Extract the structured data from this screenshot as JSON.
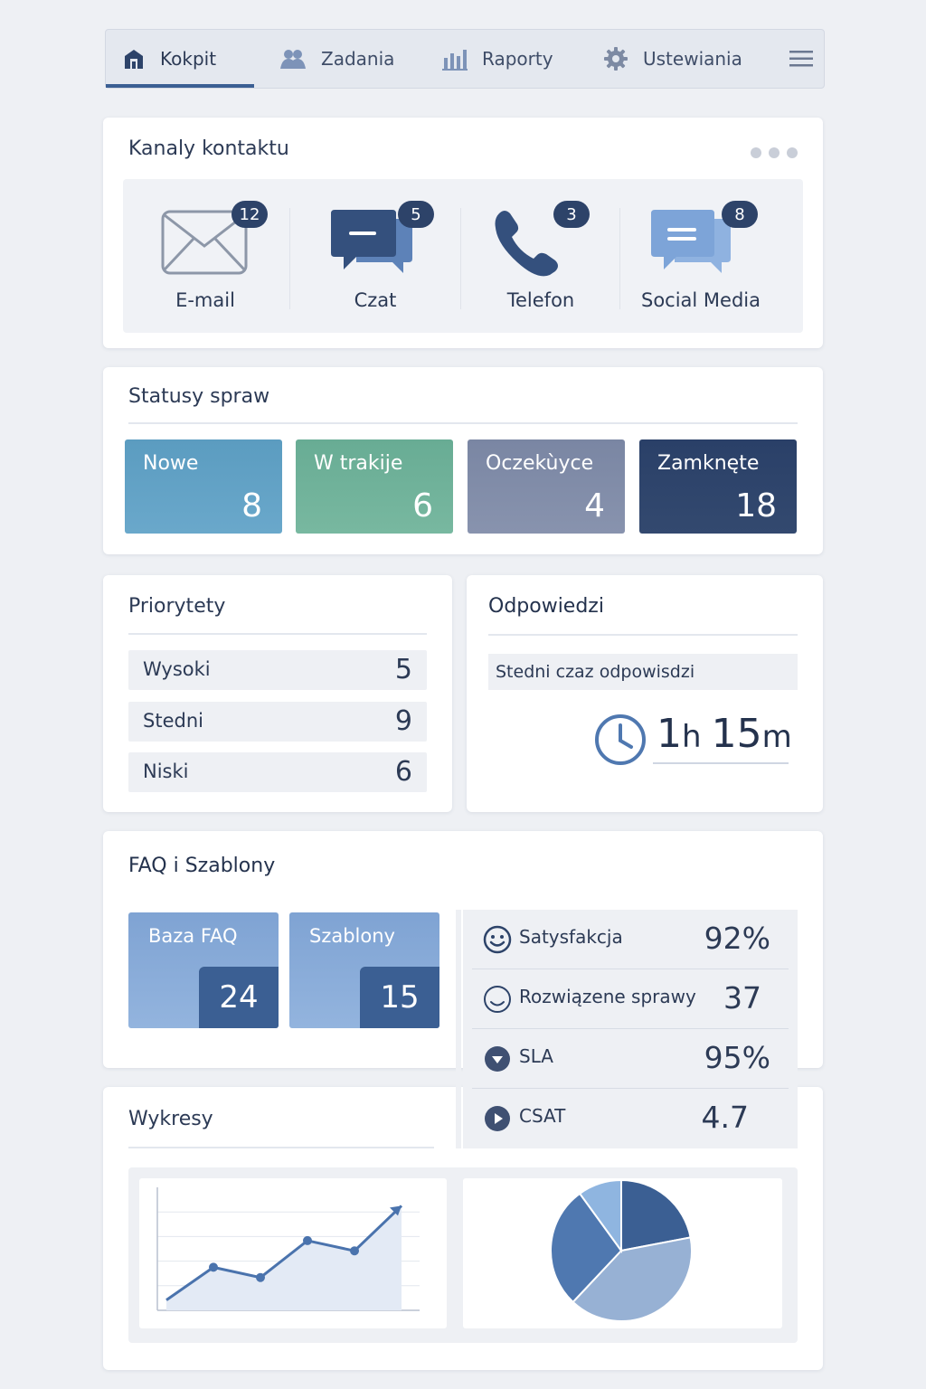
{
  "nav": {
    "items": [
      {
        "label": "Kokpit",
        "icon": "home-icon",
        "active": true
      },
      {
        "label": "Zadania",
        "icon": "users-icon",
        "active": false
      },
      {
        "label": "Raporty",
        "icon": "bar-chart-icon",
        "active": false
      },
      {
        "label": "Ustewiania",
        "icon": "gear-icon",
        "active": false
      }
    ],
    "menu_icon": "hamburger-menu-icon"
  },
  "channels": {
    "title": "Kanaly kontaktu",
    "items": [
      {
        "label": "E-mail",
        "count": "12",
        "icon": "envelope-icon"
      },
      {
        "label": "Czat",
        "count": "5",
        "icon": "chat-bubble-icon"
      },
      {
        "label": "Telefon",
        "count": "3",
        "icon": "phone-icon"
      },
      {
        "label": "Social Media",
        "count": "8",
        "icon": "social-chat-icon"
      }
    ]
  },
  "statuses": {
    "title": "Statusy spraw",
    "items": [
      {
        "label": "Nowe",
        "value": "8"
      },
      {
        "label": "W trakije",
        "value": "6"
      },
      {
        "label": "Oczekùyce",
        "value": "4"
      },
      {
        "label": "Zamknęte",
        "value": "18"
      }
    ]
  },
  "priorities": {
    "title": "Priorytety",
    "items": [
      {
        "label": "Wysoki",
        "value": "5"
      },
      {
        "label": "Stedni",
        "value": "9"
      },
      {
        "label": "Niski",
        "value": "6"
      }
    ]
  },
  "responses": {
    "title": "Odpowiedzi",
    "subtitle": "Stedni czaz odpowisdzi",
    "hours": "1",
    "hours_unit": "h",
    "minutes": "15",
    "minutes_unit": "m"
  },
  "faq": {
    "title": "FAQ i Szablony",
    "tiles": [
      {
        "label": "Baza FAQ",
        "value": "24"
      },
      {
        "label": "Szablony",
        "value": "15"
      }
    ]
  },
  "metrics": [
    {
      "label": "Satysfakcja",
      "value": "92%",
      "icon": "smiley-icon"
    },
    {
      "label": "Rozwiązene sprawy",
      "value": "37",
      "icon": "smile-circle-icon"
    },
    {
      "label": "SLA",
      "value": "95%",
      "icon": "play-circle-icon"
    },
    {
      "label": "CSAT",
      "value": "4.7",
      "icon": "play-circle-icon"
    }
  ],
  "charts": {
    "title": "Wykresy"
  },
  "chart_data": [
    {
      "type": "line",
      "title": "",
      "x": [
        1,
        2,
        3,
        4,
        5,
        6
      ],
      "series": [
        {
          "values": [
            0.5,
            2.1,
            1.6,
            3.4,
            2.9,
            5.1
          ]
        }
      ],
      "ylim": [
        0,
        6
      ],
      "grid": true,
      "color": "#4a73ad"
    },
    {
      "type": "pie",
      "title": "",
      "values": [
        22,
        40,
        28,
        10
      ],
      "colors": [
        "#3b5f93",
        "#97b1d4",
        "#4f78b0",
        "#8fb5e0"
      ]
    }
  ]
}
